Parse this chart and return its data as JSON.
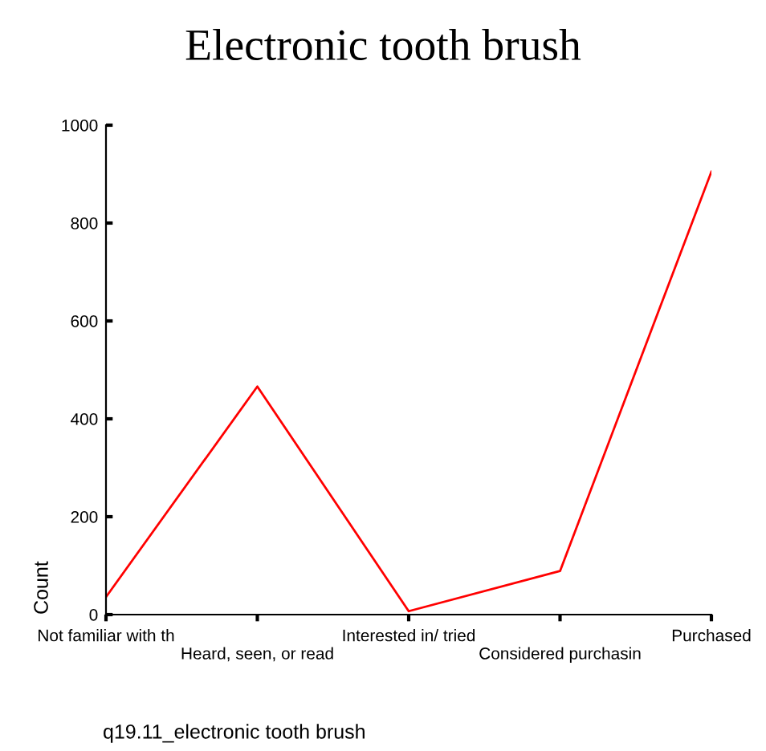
{
  "chart_data": {
    "type": "line",
    "title": "Electronic tooth brush",
    "xlabel": "q19.11_electronic tooth brush",
    "ylabel": "Count",
    "categories": [
      "Not familiar with th",
      "Heard, seen, or read",
      "Interested in/ tried",
      "Considered purchasin",
      "Purchased"
    ],
    "series": [
      {
        "color": "#ff0000",
        "values": [
          36,
          466,
          7,
          89,
          905
        ]
      }
    ],
    "ylim": [
      0,
      1000
    ],
    "yticks": [
      0,
      200,
      400,
      600,
      800,
      1000
    ],
    "grid": false,
    "legend": false,
    "marker": "none",
    "line_style": "solid"
  }
}
